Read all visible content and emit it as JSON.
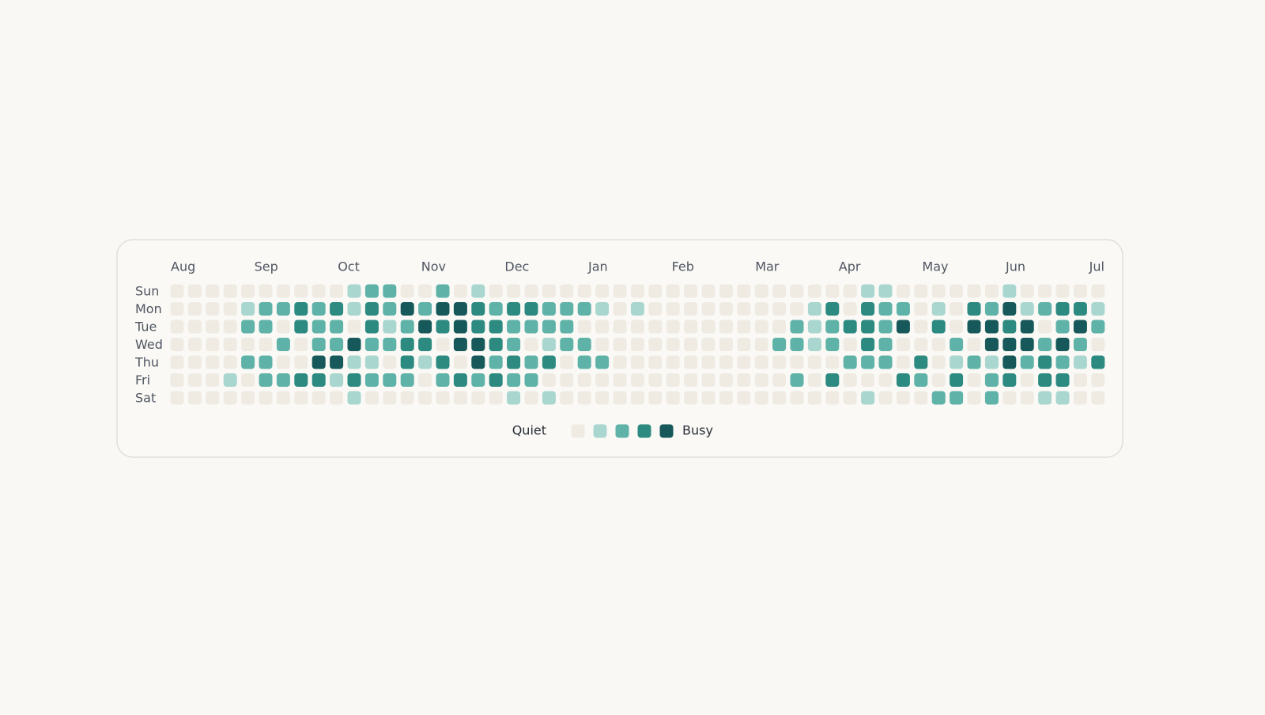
{
  "chart_data": {
    "type": "heatmap",
    "months": [
      "Aug",
      "Sep",
      "Oct",
      "Nov",
      "Dec",
      "Jan",
      "Feb",
      "Mar",
      "Apr",
      "May",
      "Jun",
      "Jul"
    ],
    "days": [
      "Sun",
      "Mon",
      "Tue",
      "Wed",
      "Thu",
      "Fri",
      "Sat"
    ],
    "values": [
      [
        0,
        0,
        0,
        0,
        0,
        0,
        0,
        0,
        0,
        0,
        1,
        2,
        2,
        0,
        0,
        2,
        0,
        1,
        0,
        0,
        0,
        0,
        0,
        0,
        0,
        0,
        0,
        0,
        0,
        0,
        0,
        0,
        0,
        0,
        0,
        0,
        0,
        0,
        0,
        1,
        1,
        0,
        0,
        0,
        0,
        0,
        0,
        1,
        0,
        0,
        0,
        0,
        0
      ],
      [
        0,
        0,
        0,
        0,
        1,
        2,
        2,
        3,
        2,
        3,
        1,
        3,
        2,
        4,
        2,
        4,
        4,
        3,
        2,
        3,
        3,
        2,
        2,
        2,
        1,
        0,
        1,
        0,
        0,
        0,
        0,
        0,
        0,
        0,
        0,
        0,
        1,
        3,
        0,
        3,
        2,
        2,
        0,
        1,
        0,
        3,
        2,
        4,
        1,
        2,
        3,
        3,
        1
      ],
      [
        0,
        0,
        0,
        0,
        2,
        2,
        0,
        3,
        2,
        2,
        0,
        3,
        1,
        2,
        4,
        3,
        4,
        3,
        3,
        2,
        2,
        2,
        2,
        0,
        0,
        0,
        0,
        0,
        0,
        0,
        0,
        0,
        0,
        0,
        0,
        2,
        1,
        2,
        3,
        3,
        2,
        4,
        0,
        3,
        0,
        4,
        4,
        3,
        4,
        0,
        2,
        4,
        2
      ],
      [
        0,
        0,
        0,
        0,
        0,
        0,
        2,
        0,
        2,
        2,
        4,
        2,
        2,
        3,
        3,
        0,
        4,
        4,
        3,
        2,
        0,
        1,
        2,
        2,
        0,
        0,
        0,
        0,
        0,
        0,
        0,
        0,
        0,
        0,
        2,
        2,
        1,
        2,
        0,
        3,
        2,
        0,
        0,
        0,
        2,
        0,
        4,
        4,
        4,
        2,
        4,
        2,
        0
      ],
      [
        0,
        0,
        0,
        0,
        2,
        2,
        0,
        0,
        4,
        4,
        1,
        1,
        0,
        3,
        1,
        3,
        0,
        4,
        2,
        3,
        2,
        3,
        0,
        2,
        2,
        0,
        0,
        0,
        0,
        0,
        0,
        0,
        0,
        0,
        0,
        0,
        0,
        0,
        2,
        2,
        2,
        0,
        3,
        0,
        1,
        2,
        1,
        4,
        2,
        3,
        2,
        1,
        3
      ],
      [
        0,
        0,
        0,
        1,
        0,
        2,
        2,
        3,
        3,
        1,
        3,
        2,
        2,
        2,
        0,
        2,
        3,
        2,
        3,
        2,
        2,
        0,
        0,
        0,
        0,
        0,
        0,
        0,
        0,
        0,
        0,
        0,
        0,
        0,
        0,
        2,
        0,
        3,
        0,
        0,
        0,
        3,
        2,
        0,
        3,
        0,
        2,
        3,
        0,
        3,
        3,
        0,
        0
      ],
      [
        0,
        0,
        0,
        0,
        0,
        0,
        0,
        0,
        0,
        0,
        1,
        0,
        0,
        0,
        0,
        0,
        0,
        0,
        0,
        1,
        0,
        1,
        0,
        0,
        0,
        0,
        0,
        0,
        0,
        0,
        0,
        0,
        0,
        0,
        0,
        0,
        0,
        0,
        0,
        1,
        0,
        0,
        0,
        2,
        2,
        0,
        2,
        0,
        0,
        1,
        1,
        0,
        0
      ]
    ],
    "colors": [
      "#efebe3",
      "#a9d6cf",
      "#5fb2a8",
      "#2c8a80",
      "#17595a"
    ],
    "legend": {
      "low": "Quiet",
      "high": "Busy"
    }
  }
}
